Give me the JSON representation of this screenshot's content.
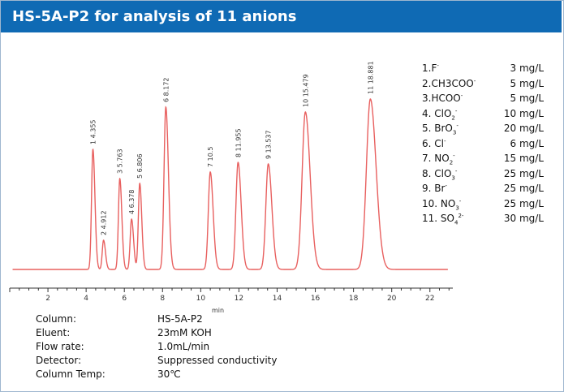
{
  "header": {
    "title": "HS-5A-P2 for analysis of 11 anions"
  },
  "chart_data": {
    "type": "line",
    "title": "HS-5A-P2 for analysis of 11 anions",
    "xlabel": "min",
    "ylabel": "",
    "xlim": [
      0,
      23.2
    ],
    "x_ticks": [
      2,
      4,
      6,
      8,
      10,
      12,
      14,
      16,
      18,
      20,
      22
    ],
    "color": "#e8605f",
    "peaks": [
      {
        "label": "1  4.355",
        "rt": 4.355,
        "height": 0.74,
        "width": 0.085
      },
      {
        "label": "2  4.912",
        "rt": 4.912,
        "height": 0.18,
        "width": 0.08
      },
      {
        "label": "3  5.763",
        "rt": 5.763,
        "height": 0.56,
        "width": 0.085
      },
      {
        "label": "4  6.378",
        "rt": 6.378,
        "height": 0.31,
        "width": 0.085
      },
      {
        "label": "5  6.806",
        "rt": 6.806,
        "height": 0.53,
        "width": 0.085
      },
      {
        "label": "6  8.172",
        "rt": 8.172,
        "height": 1.0,
        "width": 0.11
      },
      {
        "label": "7  10.5",
        "rt": 10.5,
        "height": 0.6,
        "width": 0.12
      },
      {
        "label": "8  11.955",
        "rt": 11.955,
        "height": 0.66,
        "width": 0.13
      },
      {
        "label": "9  13.537",
        "rt": 13.537,
        "height": 0.65,
        "width": 0.15
      },
      {
        "label": "10  15.479",
        "rt": 15.479,
        "height": 0.97,
        "width": 0.2
      },
      {
        "label": "11  18.881",
        "rt": 18.881,
        "height": 1.05,
        "width": 0.24
      }
    ]
  },
  "legend": [
    {
      "name": "1.F",
      "sup": "-",
      "sub": "",
      "sup2": "",
      "conc": "3 mg/L"
    },
    {
      "name": "2.CH3COO",
      "sup": "-",
      "sub": "",
      "sup2": "",
      "conc": "5 mg/L"
    },
    {
      "name": "3.HCOO",
      "sup": "-",
      "sub": "",
      "sup2": "",
      "conc": "5 mg/L"
    },
    {
      "name": "4. ClO",
      "sup": "",
      "sub": "2",
      "sup2": "-",
      "conc": "10 mg/L"
    },
    {
      "name": "5. BrO",
      "sup": "",
      "sub": "3",
      "sup2": "-",
      "conc": "20 mg/L"
    },
    {
      "name": "6. Cl",
      "sup": "-",
      "sub": "",
      "sup2": "",
      "conc": "6 mg/L"
    },
    {
      "name": "7. NO",
      "sup": "",
      "sub": "2",
      "sup2": "-",
      "conc": "15 mg/L"
    },
    {
      "name": "8. ClO",
      "sup": "",
      "sub": "3",
      "sup2": "-",
      "conc": "25 mg/L"
    },
    {
      "name": "9. Br",
      "sup": "-",
      "sub": "",
      "sup2": "",
      "conc": "25 mg/L"
    },
    {
      "name": "10. NO",
      "sup": "",
      "sub": "3",
      "sup2": "-",
      "conc": "25 mg/L"
    },
    {
      "name": "11. SO",
      "sup": "",
      "sub": "4",
      "sup2": "2-",
      "conc": "30 mg/L"
    }
  ],
  "conditions": [
    {
      "label": "Column:",
      "value": "HS-5A-P2"
    },
    {
      "label": "Eluent:",
      "value": "23mM KOH"
    },
    {
      "label": "Flow rate:",
      "value": "1.0mL/min"
    },
    {
      "label": "Detector:",
      "value": "Suppressed conductivity"
    },
    {
      "label": "Column Temp:",
      "value": "30℃"
    }
  ]
}
